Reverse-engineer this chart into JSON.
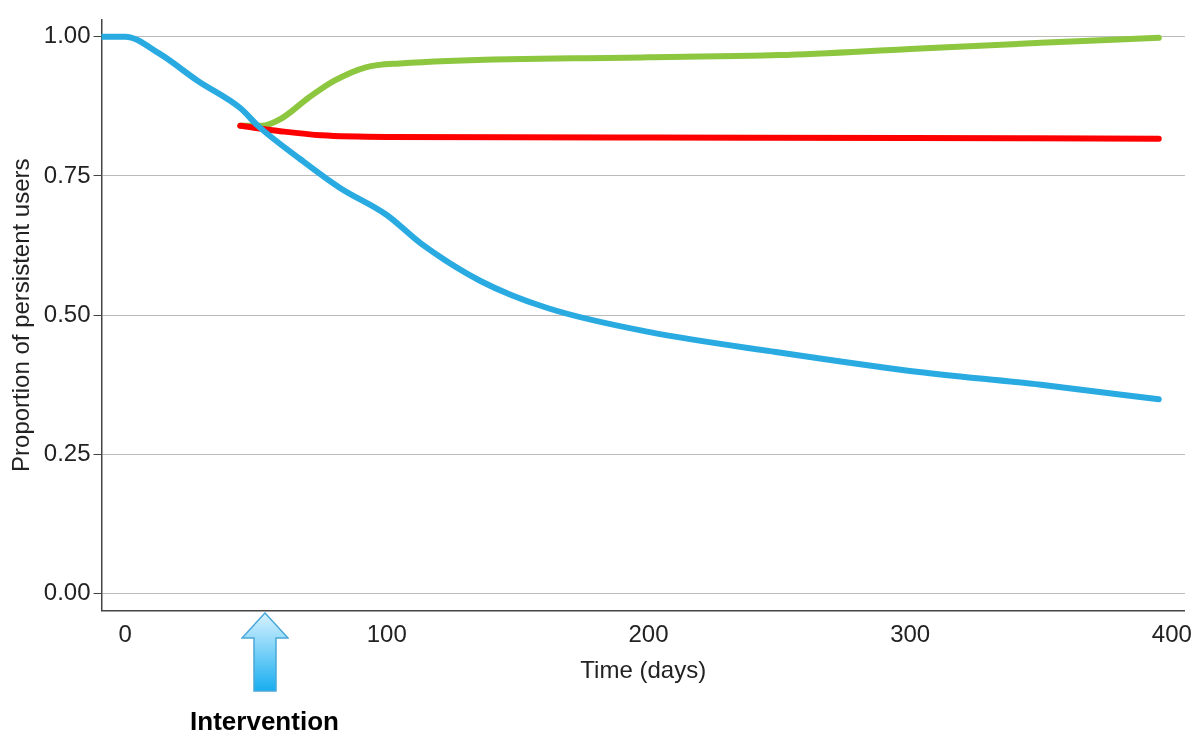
{
  "chart_data": {
    "type": "line",
    "xlabel": "Time (days)",
    "ylabel": "Proportion of persistent users",
    "xlim": [
      -9,
      405
    ],
    "xticks": [
      0,
      100,
      200,
      300,
      400
    ],
    "ylim": [
      -0.03,
      1.03
    ],
    "yticks": [
      {
        "value": 0,
        "label": "0.00"
      },
      {
        "value": 0.25,
        "label": "0.25"
      },
      {
        "value": 0.5,
        "label": "0.50"
      },
      {
        "value": 0.75,
        "label": "0.75"
      },
      {
        "value": 1,
        "label": "1.00"
      }
    ],
    "grid": "y",
    "legend": false,
    "marker": "none",
    "line_style": "solid",
    "annotations": [
      "Intervention"
    ],
    "series": [
      {
        "color": "#29abe2",
        "x": [
          -9,
          0,
          13,
          28,
          44,
          51,
          67,
          82,
          100,
          113,
          136,
          162,
          200,
          250,
          300,
          350,
          395
        ],
        "values": [
          1.0,
          1.0,
          0.97,
          0.92,
          0.872,
          0.839,
          0.78,
          0.729,
          0.68,
          0.629,
          0.561,
          0.512,
          0.47,
          0.433,
          0.4,
          0.375,
          0.349
        ]
      },
      {
        "color": "#ff0000",
        "x": [
          44,
          60,
          75,
          100,
          200,
          300,
          395
        ],
        "values": [
          0.84,
          0.83,
          0.823,
          0.82,
          0.819,
          0.818,
          0.817
        ]
      },
      {
        "color": "#8dc63f",
        "x": [
          44,
          52,
          60,
          70,
          80,
          92,
          105,
          200,
          250,
          300,
          350,
          395
        ],
        "values": [
          0.84,
          0.84,
          0.854,
          0.89,
          0.921,
          0.945,
          0.952,
          0.963,
          0.967,
          0.978,
          0.989,
          0.998
        ]
      }
    ]
  }
}
